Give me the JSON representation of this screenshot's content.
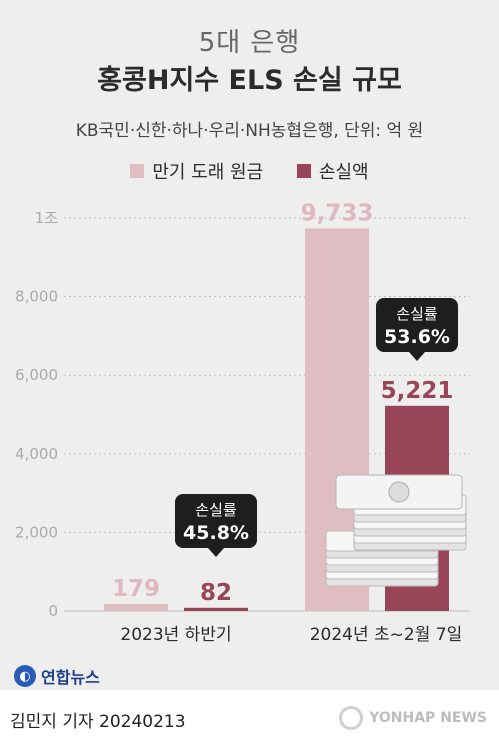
{
  "header": {
    "supertitle": "5대 은행",
    "title": "홍콩H지수 ELS 손실 규모",
    "subtitle": "KB국민·신한·하나·우리·NH농협은행, 단위: 억 원"
  },
  "colors": {
    "principal": "#dfbdc3",
    "loss": "#98455a",
    "callout": "#1e1e1e",
    "gridline": "#bdbdbd"
  },
  "chart_data": {
    "type": "bar",
    "categories": [
      "2023년 하반기",
      "2024년 초~2월 7일"
    ],
    "series": [
      {
        "name": "만기 도래 원금",
        "values": [
          179,
          9733
        ],
        "labels": [
          "179",
          "9,733"
        ]
      },
      {
        "name": "손실액",
        "values": [
          82,
          5221
        ],
        "labels": [
          "82",
          "5,221"
        ]
      }
    ],
    "ylim": [
      0,
      10000
    ],
    "yticks": [
      0,
      2000,
      4000,
      6000,
      8000,
      10000
    ],
    "ytick_labels": [
      "0",
      "2,000",
      "4,000",
      "6,000",
      "8,000",
      "1조"
    ],
    "grid": true,
    "legend_position": "top-center",
    "annotations": [
      {
        "label": "손실률",
        "value": "45.8%",
        "category": "2023년 하반기"
      },
      {
        "label": "손실률",
        "value": "53.6%",
        "category": "2024년 초~2월 7일"
      }
    ]
  },
  "footer": {
    "agency": "연합뉴스",
    "byline": "김민지 기자  20240213",
    "watermark": "YONHAP NEWS"
  }
}
